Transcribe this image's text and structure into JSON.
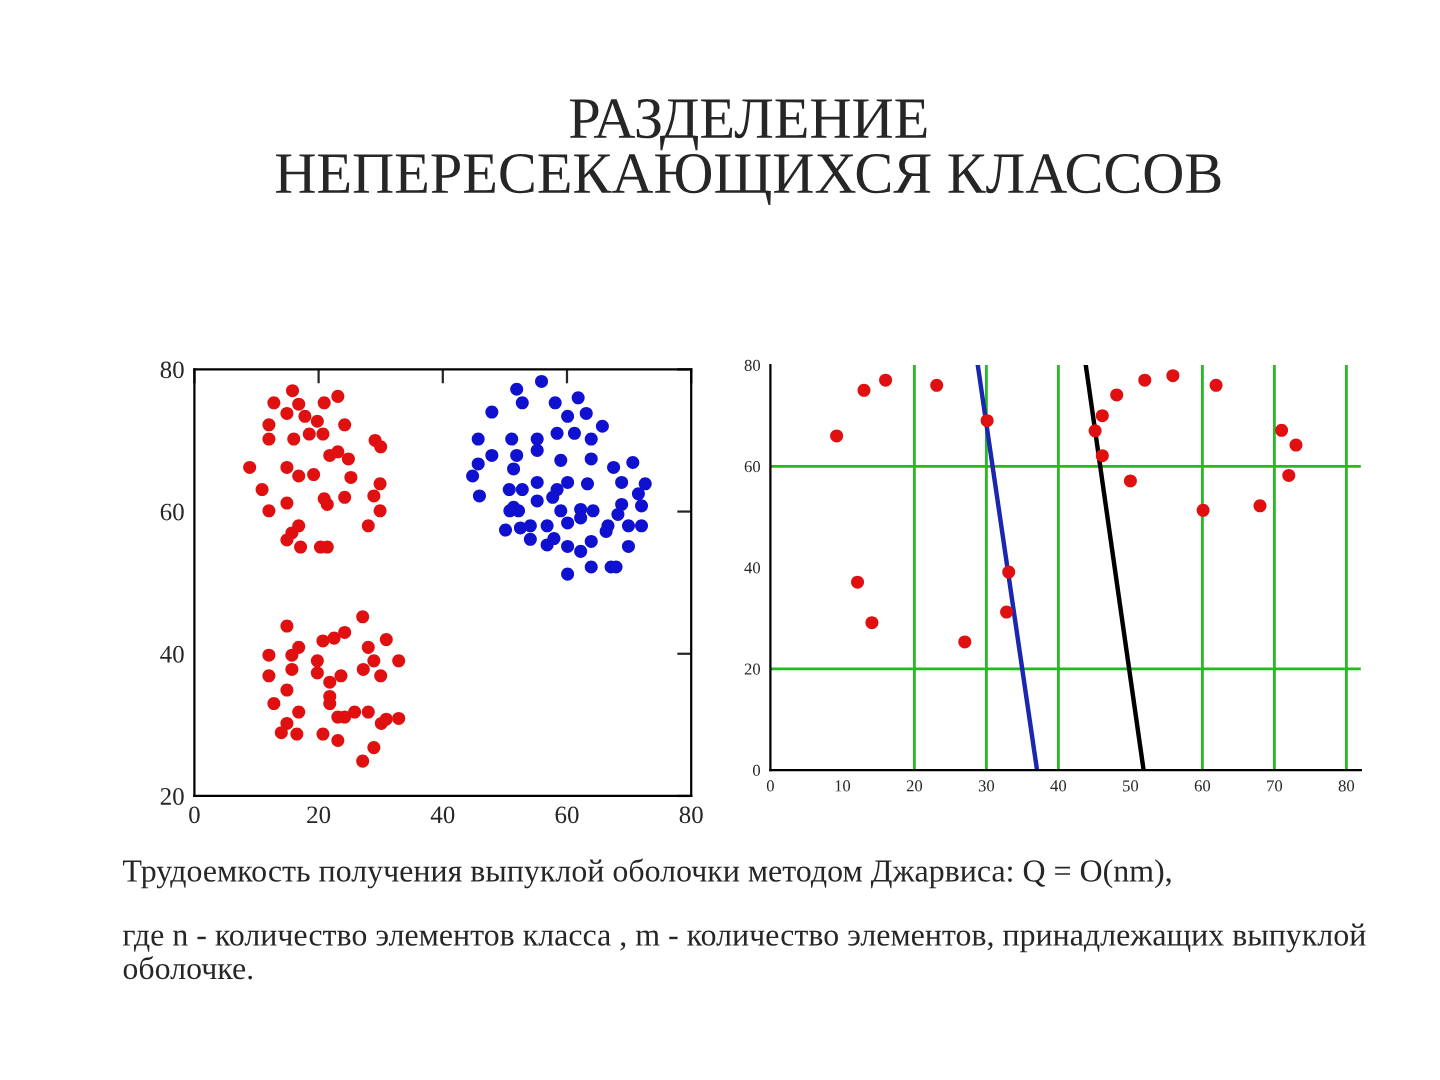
{
  "chart_data": [
    {
      "type": "scatter",
      "title": "РАЗДЕЛЕНИЕ\nНЕПЕРЕСЕКАЮЩИХСЯ КЛАССОВ",
      "annotations": [
        "Трудоемкость получения выпуклой оболочки методом Джарвиса: Q = O(nm),",
        "где n - количество элементов класса , m - количество элементов, принадлежащих выпуклой оболочке."
      ],
      "marker": "circle",
      "legend": false,
      "grid": false,
      "xlim": [
        0,
        80
      ],
      "ylim": [
        20,
        80
      ],
      "xticks": [
        0,
        20,
        40,
        60,
        80
      ],
      "yticks": [
        20,
        40,
        60,
        80
      ],
      "series": [
        {
          "color": "#e01010",
          "x": [
            15.8,
            12.8,
            12.0,
            12.0,
            14.9,
            16.8,
            16.0,
            17.8,
            18.5,
            20.9,
            23.1,
            20.7,
            24.2,
            8.9,
            14.9,
            16.8,
            19.2,
            21.8,
            24.8,
            25.2,
            29.1,
            30.0,
            10.9,
            12.0,
            14.9,
            20.9,
            21.4,
            24.2,
            28.9,
            29.9,
            29.9,
            28.0,
            16.8,
            15.7,
            14.9,
            17.1,
            20.3,
            21.4,
            19.8,
            23.1
          ],
          "values": [
            77.0,
            75.3,
            72.2,
            70.2,
            73.8,
            75.1,
            70.2,
            73.4,
            70.9,
            75.3,
            76.2,
            70.9,
            72.2,
            66.2,
            66.2,
            65.0,
            65.2,
            67.9,
            67.4,
            64.8,
            70.0,
            69.1,
            63.1,
            60.1,
            61.2,
            61.8,
            61.0,
            62.0,
            62.2,
            63.9,
            60.1,
            58.0,
            58.0,
            57.0,
            56.0,
            55.0,
            55.0,
            55.0,
            72.7,
            68.4
          ]
        },
        {
          "color": "#e01010",
          "x": [
            14.9,
            12.0,
            12.0,
            12.8,
            15.7,
            16.8,
            15.7,
            14.9,
            16.8,
            14.0,
            16.5,
            14.9,
            19.8,
            20.7,
            22.5,
            24.2,
            27.1,
            28.0,
            28.9,
            30.9,
            32.9,
            30.0,
            27.2,
            21.8,
            23.6,
            21.8,
            21.8,
            23.1,
            24.2,
            25.8,
            28.0,
            30.1,
            30.9,
            32.9,
            28.9,
            27.1,
            20.7,
            23.1,
            19.8
          ],
          "values": [
            43.9,
            39.8,
            36.9,
            33.0,
            39.8,
            40.9,
            37.8,
            34.9,
            31.8,
            28.9,
            28.7,
            30.2,
            39.0,
            41.8,
            42.2,
            43.0,
            45.2,
            40.9,
            39.0,
            42.0,
            39.0,
            36.9,
            37.8,
            36.0,
            36.9,
            34.0,
            33.0,
            31.1,
            31.1,
            31.8,
            31.8,
            30.2,
            30.8,
            30.9,
            26.8,
            24.9,
            28.7,
            27.8,
            37.3
          ]
        },
        {
          "color": "#1010d0",
          "x": [
            55.9,
            51.9,
            52.8,
            47.9,
            58.1,
            61.8,
            63.1,
            60.1,
            45.7,
            51.1,
            55.2,
            58.4,
            61.2,
            65.7,
            63.9,
            45.7,
            47.9,
            51.9,
            55.2,
            59.0,
            63.9,
            67.5,
            70.6,
            44.8,
            51.4,
            45.9,
            50.7,
            52.8,
            55.2,
            58.4,
            60.1,
            63.3,
            68.8,
            72.6,
            71.5,
            51.4,
            52.2,
            55.2,
            57.7,
            59.0,
            62.2,
            64.2,
            68.8,
            72.0,
            50.1,
            52.5,
            54.1,
            56.8,
            60.1,
            62.2,
            66.6,
            68.2,
            69.9,
            72.0,
            54.1,
            56.8,
            60.1,
            62.2,
            63.9,
            66.3,
            69.9,
            60.1,
            63.9,
            67.1,
            67.9,
            50.8,
            57.9
          ],
          "values": [
            78.3,
            77.2,
            75.3,
            74.0,
            75.3,
            76.0,
            73.8,
            73.4,
            70.2,
            70.2,
            70.2,
            71.0,
            71.0,
            72.0,
            70.2,
            66.7,
            67.9,
            67.9,
            68.6,
            67.2,
            67.4,
            66.2,
            66.9,
            65.0,
            66.0,
            62.2,
            63.1,
            63.1,
            64.1,
            63.1,
            64.1,
            63.9,
            64.1,
            63.9,
            62.5,
            60.6,
            60.1,
            61.5,
            62.0,
            60.1,
            60.3,
            60.1,
            61.0,
            60.8,
            57.4,
            57.7,
            58.0,
            58.0,
            58.4,
            59.1,
            58.0,
            59.6,
            58.0,
            58.0,
            56.1,
            55.3,
            55.1,
            54.4,
            55.8,
            57.2,
            55.1,
            51.2,
            52.2,
            52.2,
            52.2,
            60.1,
            56.2
          ]
        }
      ]
    },
    {
      "type": "scatter",
      "marker": "circle",
      "legend": false,
      "grid": false,
      "xlim": [
        0,
        82
      ],
      "ylim": [
        0,
        80
      ],
      "xticks": [
        0,
        10,
        20,
        30,
        40,
        50,
        60,
        70,
        80
      ],
      "yticks": [
        0,
        20,
        40,
        60,
        80
      ],
      "ref_lines": [
        {
          "axis": "x",
          "value": 20,
          "color": "#22bb22"
        },
        {
          "axis": "x",
          "value": 30,
          "color": "#22bb22"
        },
        {
          "axis": "x",
          "value": 40,
          "color": "#22bb22"
        },
        {
          "axis": "x",
          "value": 60,
          "color": "#22bb22"
        },
        {
          "axis": "x",
          "value": 70,
          "color": "#22bb22"
        },
        {
          "axis": "x",
          "value": 80,
          "color": "#22bb22"
        },
        {
          "axis": "y",
          "value": 20,
          "color": "#22bb22"
        },
        {
          "axis": "y",
          "value": 60,
          "color": "#22bb22"
        }
      ],
      "series": [
        {
          "color": "#e01010",
          "x": [
            9.2,
            13.0,
            16.0,
            23.1,
            30.1,
            33.1,
            32.8,
            27.0,
            12.1,
            14.1,
            45.1,
            46.1,
            46.1,
            48.1,
            50.0,
            52.0,
            55.9,
            61.9,
            60.1,
            68.0,
            71.0,
            73.0,
            72.0
          ],
          "values": [
            66.0,
            75.0,
            77.0,
            76.0,
            69.0,
            39.1,
            31.2,
            25.3,
            37.1,
            29.1,
            67.0,
            70.0,
            62.1,
            74.1,
            57.1,
            77.0,
            77.9,
            76.0,
            51.3,
            52.2,
            67.1,
            64.2,
            58.2
          ]
        },
        {
          "type": "line",
          "marker": "none",
          "color": "#1a28b0",
          "x": [
            28.8,
            37.0
          ],
          "values": [
            80,
            0.3
          ]
        },
        {
          "type": "line",
          "marker": "none",
          "color": "#000000",
          "x": [
            43.8,
            51.8
          ],
          "values": [
            80,
            0.3
          ]
        }
      ]
    }
  ]
}
